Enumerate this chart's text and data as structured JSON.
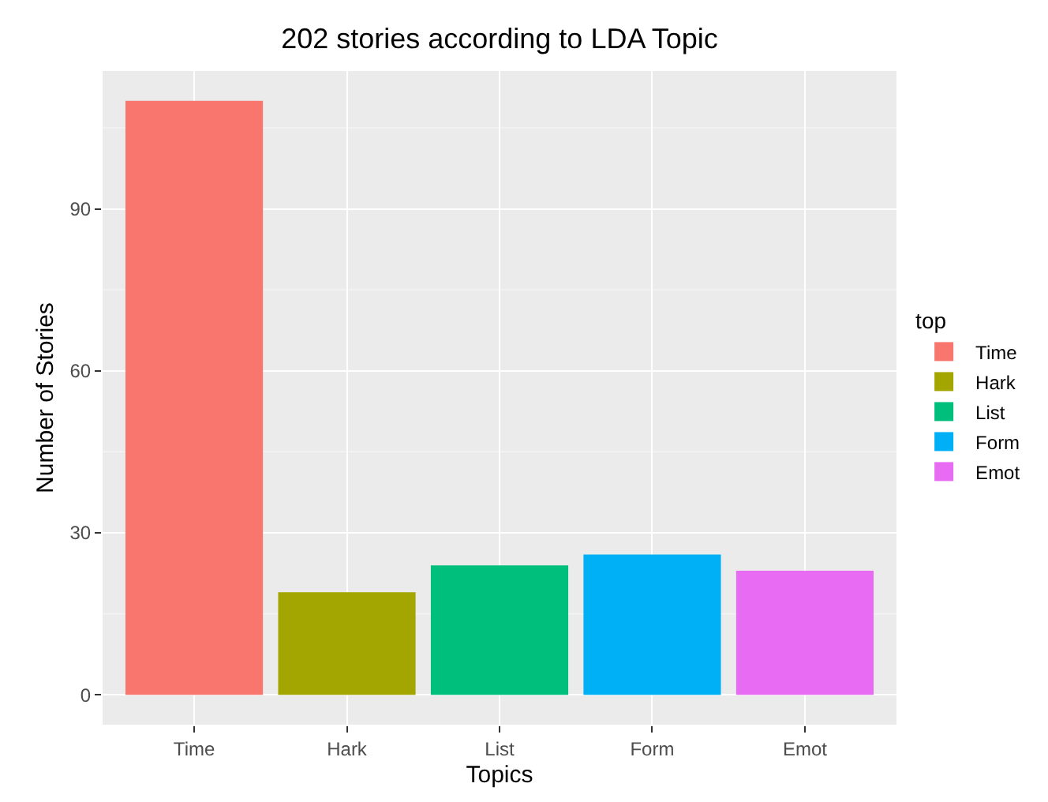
{
  "chart_data": {
    "type": "bar",
    "title": "202 stories according to LDA Topic",
    "xlabel": "Topics",
    "ylabel": "Number of Stories",
    "legend_title": "top",
    "categories": [
      "Time",
      "Hark",
      "List",
      "Form",
      "Emot"
    ],
    "series": [
      {
        "name": "Time",
        "color": "#f8766d",
        "values": [
          110,
          null,
          null,
          null,
          null
        ]
      },
      {
        "name": "Hark",
        "color": "#a3a500",
        "values": [
          null,
          19,
          null,
          null,
          null
        ]
      },
      {
        "name": "List",
        "color": "#00bf7d",
        "values": [
          null,
          null,
          24,
          null,
          null
        ]
      },
      {
        "name": "Form",
        "color": "#00b0f6",
        "values": [
          null,
          null,
          null,
          26,
          null
        ]
      },
      {
        "name": "Emot",
        "color": "#e76bf3",
        "values": [
          null,
          null,
          null,
          null,
          23
        ]
      }
    ],
    "ylim": [
      -5.5,
      115.5
    ],
    "yticks": [
      0,
      30,
      60,
      90
    ],
    "grid": true,
    "legend": "right"
  }
}
